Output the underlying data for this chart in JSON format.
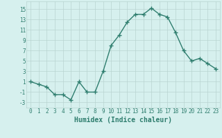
{
  "x": [
    0,
    1,
    2,
    3,
    4,
    5,
    6,
    7,
    8,
    9,
    10,
    11,
    12,
    13,
    14,
    15,
    16,
    17,
    18,
    19,
    20,
    21,
    22,
    23
  ],
  "y": [
    1,
    0.5,
    0,
    -1.5,
    -1.5,
    -2.5,
    1,
    -1,
    -1,
    3,
    8,
    10,
    12.5,
    14,
    14,
    15.2,
    14,
    13.5,
    10.5,
    7,
    5,
    5.5,
    4.5,
    3.5
  ],
  "line_color": "#2e7d6e",
  "marker": "+",
  "marker_size": 4,
  "bg_color": "#d6f0ee",
  "grid_color": "#b8d4d0",
  "tick_color": "#2e7d6e",
  "xlabel": "Humidex (Indice chaleur)",
  "xlabel_fontsize": 7,
  "xlabel_color": "#2e7d6e",
  "ylabel_ticks": [
    -3,
    -1,
    1,
    3,
    5,
    7,
    9,
    11,
    13,
    15
  ],
  "ylim": [
    -4,
    16.5
  ],
  "xlim": [
    -0.5,
    23.5
  ],
  "xticks": [
    0,
    1,
    2,
    3,
    4,
    5,
    6,
    7,
    8,
    9,
    10,
    11,
    12,
    13,
    14,
    15,
    16,
    17,
    18,
    19,
    20,
    21,
    22,
    23
  ],
  "tick_fontsize": 5.5,
  "linewidth": 1.0
}
